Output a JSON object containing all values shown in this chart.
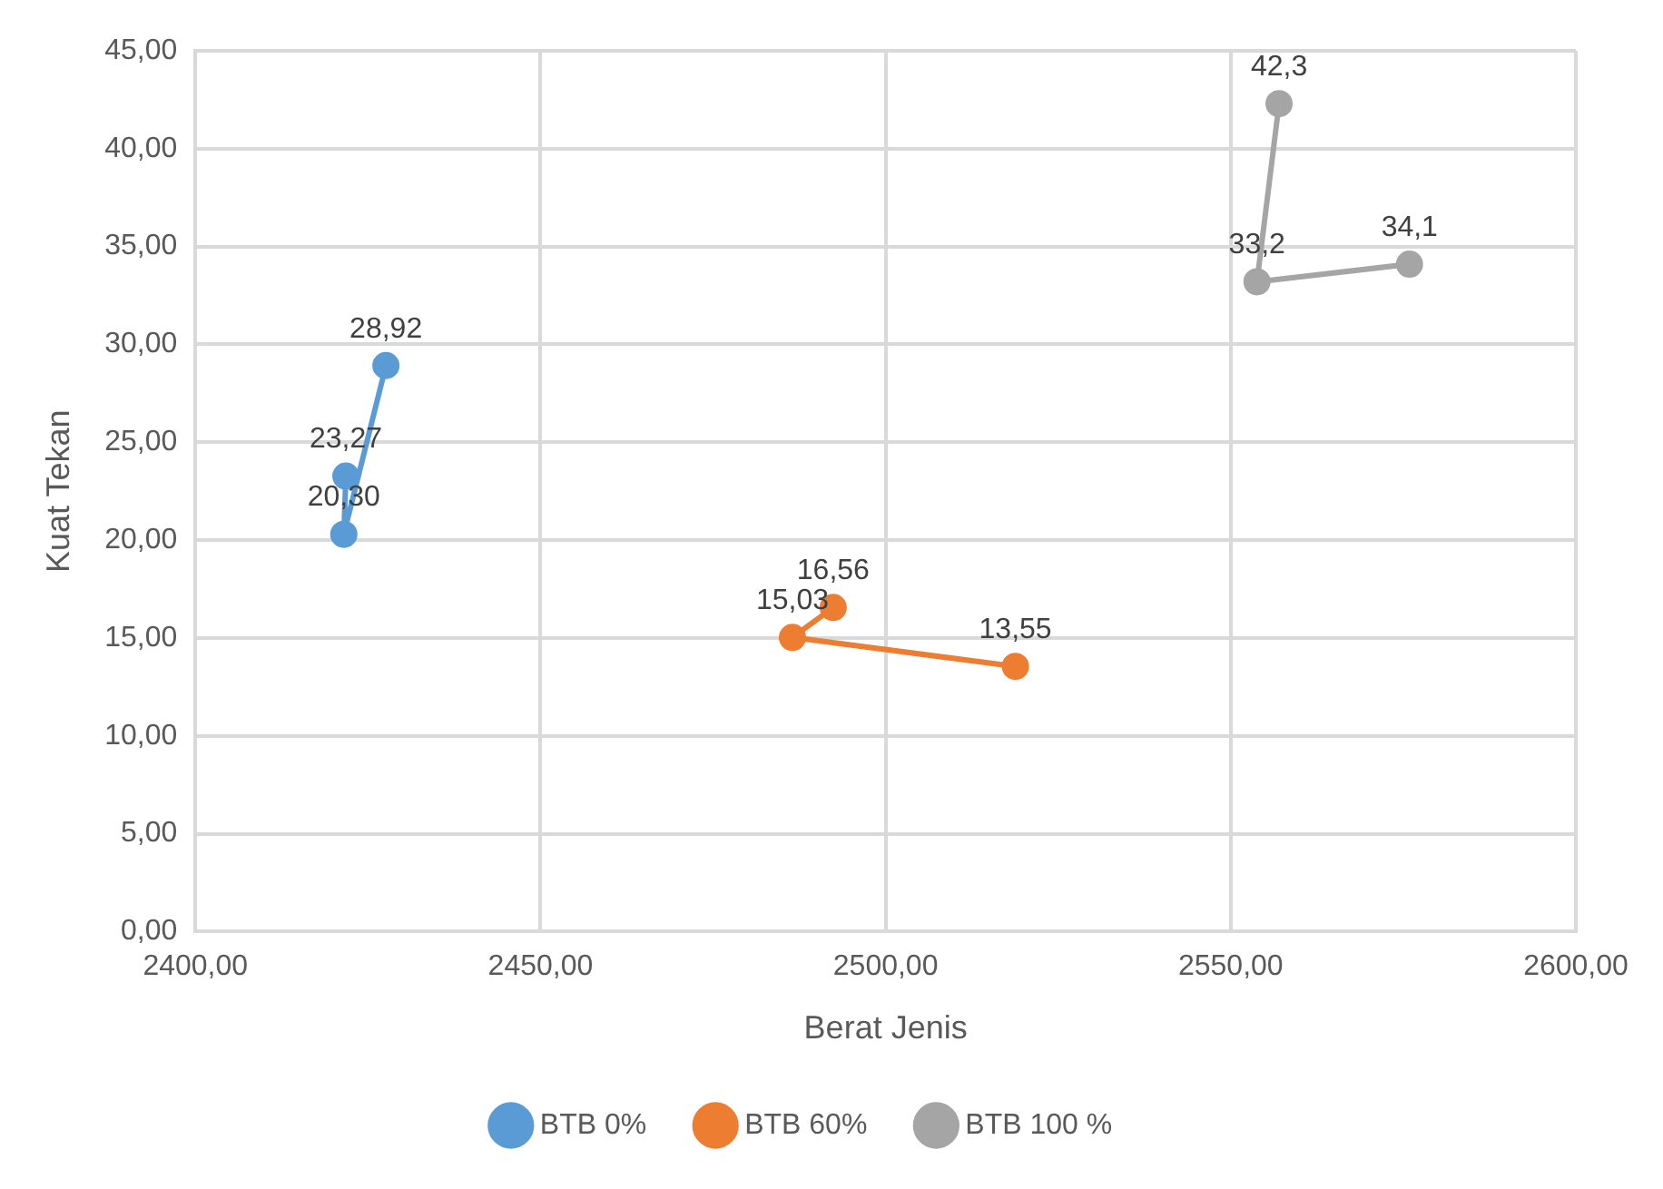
{
  "chart_data": {
    "type": "line",
    "xlabel": "Berat Jenis",
    "ylabel": "Kuat Tekan",
    "xlim": [
      2400,
      2600
    ],
    "xticks": [
      {
        "value": 2400,
        "label": "2400,00"
      },
      {
        "value": 2450,
        "label": "2450,00"
      },
      {
        "value": 2500,
        "label": "2500,00"
      },
      {
        "value": 2550,
        "label": "2550,00"
      },
      {
        "value": 2600,
        "label": "2600,00"
      }
    ],
    "ylim": [
      0,
      45
    ],
    "yticks": [
      {
        "value": 0,
        "label": "0,00"
      },
      {
        "value": 5,
        "label": "5,00"
      },
      {
        "value": 10,
        "label": "10,00"
      },
      {
        "value": 15,
        "label": "15,00"
      },
      {
        "value": 20,
        "label": "20,00"
      },
      {
        "value": 25,
        "label": "25,00"
      },
      {
        "value": 30,
        "label": "30,00"
      },
      {
        "value": 35,
        "label": "35,00"
      },
      {
        "value": 40,
        "label": "40,00"
      },
      {
        "value": 45,
        "label": "45,00"
      }
    ],
    "grid": true,
    "legend": "bottom",
    "marker": "circle",
    "line_style": "solid",
    "series": [
      {
        "name": "BTB 0%",
        "color": "#5b9bd5",
        "x": [
          2421.8,
          2421.5,
          2427.6
        ],
        "values": [
          23.27,
          20.3,
          28.92
        ],
        "value_labels": [
          "23,27",
          "20,30",
          "28,92"
        ]
      },
      {
        "name": "BTB 60%",
        "color": "#ed7d31",
        "x": [
          2492.4,
          2486.5,
          2518.8
        ],
        "values": [
          16.56,
          15.03,
          13.55
        ],
        "value_labels": [
          "16,56",
          "15,03",
          "13,55"
        ]
      },
      {
        "name": "BTB 100 %",
        "color": "#a5a5a5",
        "x": [
          2557.0,
          2553.8,
          2575.9
        ],
        "values": [
          42.3,
          33.2,
          34.1
        ],
        "value_labels": [
          "42,3",
          "33,2",
          "34,1"
        ]
      }
    ]
  }
}
